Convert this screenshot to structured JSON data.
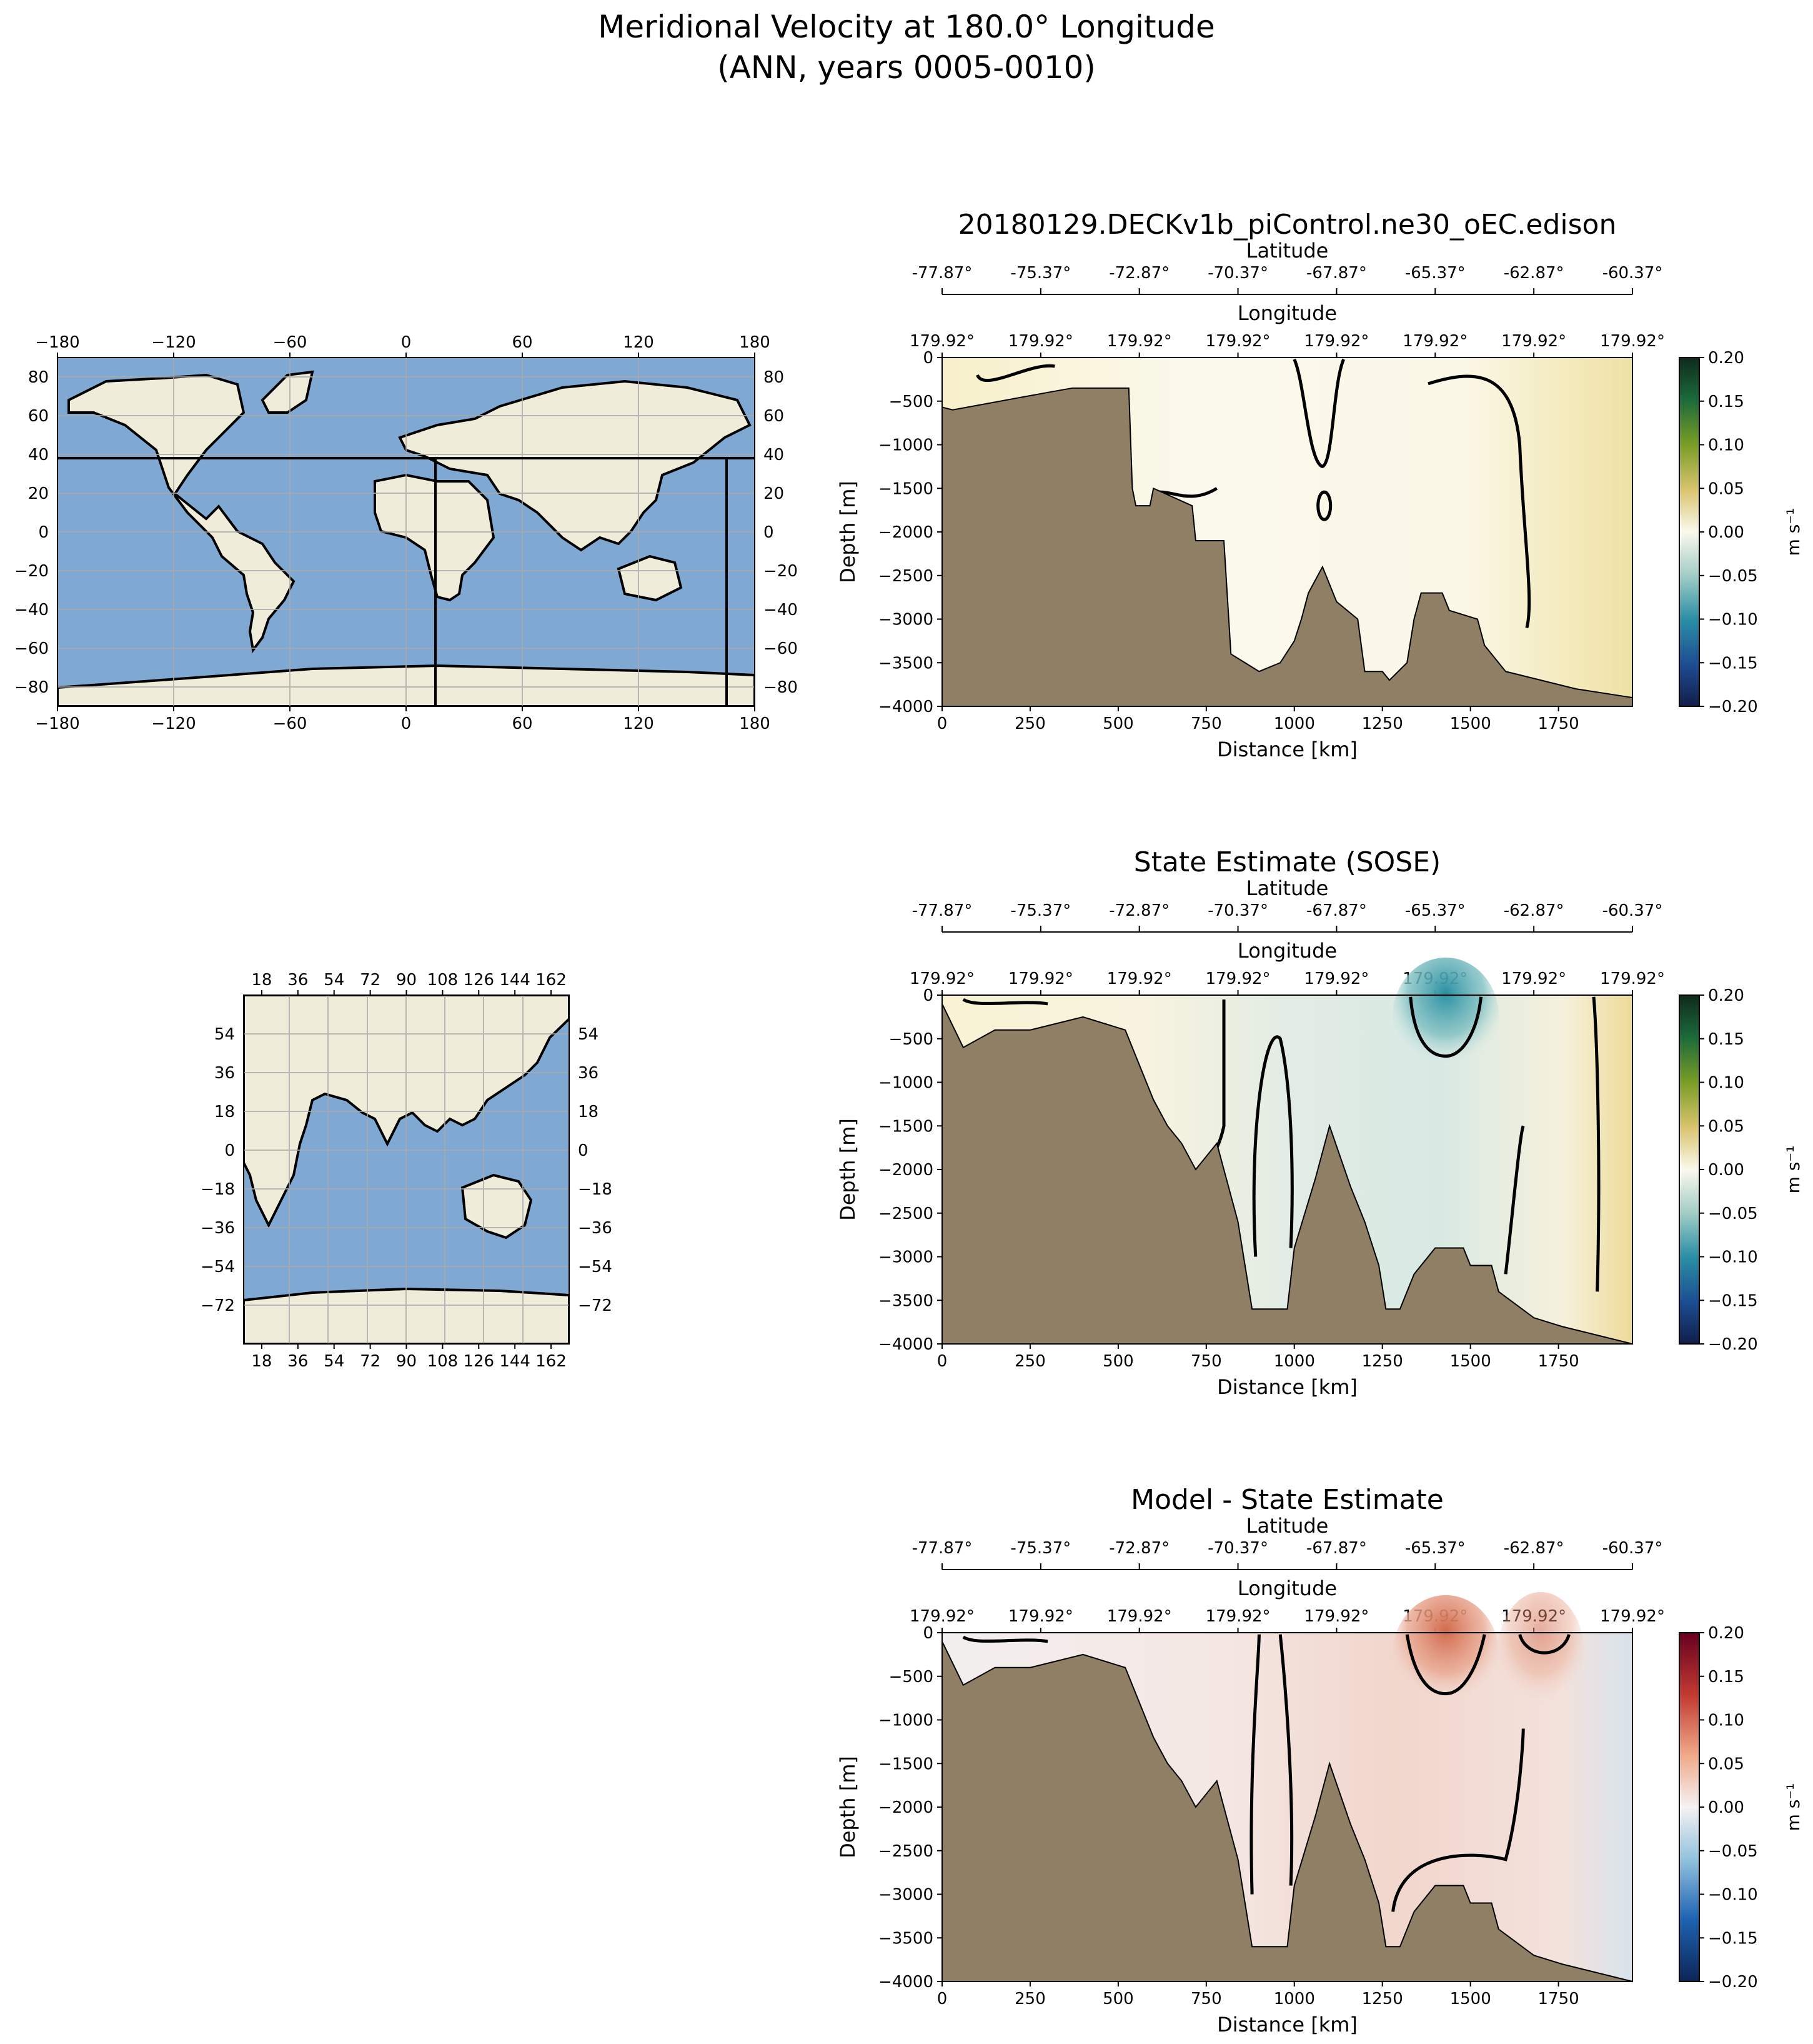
{
  "figure": {
    "title_line1": "Meridional Velocity at 180.0° Longitude",
    "title_line2": "(ANN, years 0005-0010)"
  },
  "colors": {
    "land_section": "#8f7f65",
    "ocean_map": "#7fa9d3",
    "land_map": "#efecd9",
    "contour": "#000000",
    "grid": "#aaaaaa"
  },
  "maps": [
    {
      "name": "global-map",
      "x_ticks": [
        "−180",
        "−120",
        "−60",
        "0",
        "60",
        "120",
        "180"
      ],
      "y_ticks": [
        "80",
        "60",
        "40",
        "20",
        "0",
        "−20",
        "−40",
        "−60",
        "−80"
      ]
    },
    {
      "name": "regional-map",
      "x_ticks": [
        "18",
        "36",
        "54",
        "72",
        "90",
        "108",
        "126",
        "144",
        "162"
      ],
      "y_ticks": [
        "54",
        "36",
        "18",
        "0",
        "−18",
        "−36",
        "−54",
        "−72"
      ]
    }
  ],
  "chart_data": [
    {
      "type": "heatmap",
      "title": "20180129.DECKv1b_piControl.ne30_oEC.edison",
      "xlabel": "Distance [km]",
      "ylabel": "Depth [m]",
      "xlim": [
        0,
        1960
      ],
      "ylim": [
        -4000,
        0
      ],
      "x_ticks": [
        "0",
        "250",
        "500",
        "750",
        "1000",
        "1250",
        "1500",
        "1750"
      ],
      "y_ticks": [
        "0",
        "−500",
        "−1000",
        "−1500",
        "−2000",
        "−2500",
        "−3000",
        "−3500",
        "−4000"
      ],
      "lat_axis_label": "Latitude",
      "lat_ticks": [
        "-77.87°",
        "-75.37°",
        "-72.87°",
        "-70.37°",
        "-67.87°",
        "-65.37°",
        "-62.87°",
        "-60.37°"
      ],
      "lon_axis_label": "Longitude",
      "lon_ticks": [
        "179.92°",
        "179.92°",
        "179.92°",
        "179.92°",
        "179.92°",
        "179.92°",
        "179.92°",
        "179.92°"
      ],
      "colorbar": {
        "label": "m s⁻¹",
        "cmap": "gist_earth-like",
        "range": [
          -0.2,
          0.2
        ],
        "ticks": [
          "0.20",
          "0.15",
          "0.10",
          "0.05",
          "0.00",
          "−0.05",
          "−0.10",
          "−0.15",
          "−0.20"
        ]
      },
      "bathymetry_km_m": [
        [
          0,
          -570
        ],
        [
          30,
          -600
        ],
        [
          300,
          -400
        ],
        [
          370,
          -350
        ],
        [
          530,
          -350
        ],
        [
          540,
          -1500
        ],
        [
          550,
          -1700
        ],
        [
          590,
          -1700
        ],
        [
          600,
          -1500
        ],
        [
          710,
          -1700
        ],
        [
          720,
          -2100
        ],
        [
          800,
          -2100
        ],
        [
          820,
          -3400
        ],
        [
          860,
          -3500
        ],
        [
          900,
          -3600
        ],
        [
          960,
          -3500
        ],
        [
          1000,
          -3250
        ],
        [
          1020,
          -3000
        ],
        [
          1040,
          -2700
        ],
        [
          1080,
          -2400
        ],
        [
          1120,
          -2800
        ],
        [
          1180,
          -3000
        ],
        [
          1200,
          -3600
        ],
        [
          1250,
          -3600
        ],
        [
          1270,
          -3700
        ],
        [
          1320,
          -3500
        ],
        [
          1340,
          -3000
        ],
        [
          1360,
          -2700
        ],
        [
          1420,
          -2700
        ],
        [
          1440,
          -2900
        ],
        [
          1520,
          -3000
        ],
        [
          1540,
          -3300
        ],
        [
          1600,
          -3600
        ],
        [
          1800,
          -3800
        ],
        [
          1960,
          -3900
        ]
      ]
    },
    {
      "type": "heatmap",
      "title": "State Estimate (SOSE)",
      "xlabel": "Distance [km]",
      "ylabel": "Depth [m]",
      "xlim": [
        0,
        1960
      ],
      "ylim": [
        -4000,
        0
      ],
      "x_ticks": [
        "0",
        "250",
        "500",
        "750",
        "1000",
        "1250",
        "1500",
        "1750"
      ],
      "y_ticks": [
        "0",
        "−500",
        "−1000",
        "−1500",
        "−2000",
        "−2500",
        "−3000",
        "−3500",
        "−4000"
      ],
      "lat_axis_label": "Latitude",
      "lat_ticks": [
        "-77.87°",
        "-75.37°",
        "-72.87°",
        "-70.37°",
        "-67.87°",
        "-65.37°",
        "-62.87°",
        "-60.37°"
      ],
      "lon_axis_label": "Longitude",
      "lon_ticks": [
        "179.92°",
        "179.92°",
        "179.92°",
        "179.92°",
        "179.92°",
        "179.92°",
        "179.92°",
        "179.92°"
      ],
      "colorbar": {
        "label": "m s⁻¹",
        "cmap": "gist_earth-like",
        "range": [
          -0.2,
          0.2
        ],
        "ticks": [
          "0.20",
          "0.15",
          "0.10",
          "0.05",
          "0.00",
          "−0.05",
          "−0.10",
          "−0.15",
          "−0.20"
        ]
      },
      "bathymetry_km_m": [
        [
          0,
          -100
        ],
        [
          60,
          -600
        ],
        [
          150,
          -400
        ],
        [
          250,
          -400
        ],
        [
          400,
          -250
        ],
        [
          520,
          -400
        ],
        [
          560,
          -800
        ],
        [
          600,
          -1200
        ],
        [
          640,
          -1500
        ],
        [
          680,
          -1700
        ],
        [
          720,
          -2000
        ],
        [
          780,
          -1700
        ],
        [
          800,
          -2000
        ],
        [
          840,
          -2600
        ],
        [
          880,
          -3600
        ],
        [
          980,
          -3600
        ],
        [
          1000,
          -2900
        ],
        [
          1060,
          -2100
        ],
        [
          1100,
          -1500
        ],
        [
          1160,
          -2200
        ],
        [
          1200,
          -2600
        ],
        [
          1240,
          -3100
        ],
        [
          1260,
          -3600
        ],
        [
          1300,
          -3600
        ],
        [
          1340,
          -3200
        ],
        [
          1400,
          -2900
        ],
        [
          1480,
          -2900
        ],
        [
          1500,
          -3100
        ],
        [
          1560,
          -3100
        ],
        [
          1580,
          -3400
        ],
        [
          1680,
          -3700
        ],
        [
          1760,
          -3800
        ],
        [
          1960,
          -4000
        ]
      ]
    },
    {
      "type": "heatmap",
      "title": "Model - State Estimate",
      "xlabel": "Distance [km]",
      "ylabel": "Depth [m]",
      "xlim": [
        0,
        1960
      ],
      "ylim": [
        -4000,
        0
      ],
      "x_ticks": [
        "0",
        "250",
        "500",
        "750",
        "1000",
        "1250",
        "1500",
        "1750"
      ],
      "y_ticks": [
        "0",
        "−500",
        "−1000",
        "−1500",
        "−2000",
        "−2500",
        "−3000",
        "−3500",
        "−4000"
      ],
      "lat_axis_label": "Latitude",
      "lat_ticks": [
        "-77.87°",
        "-75.37°",
        "-72.87°",
        "-70.37°",
        "-67.87°",
        "-65.37°",
        "-62.87°",
        "-60.37°"
      ],
      "lon_axis_label": "Longitude",
      "lon_ticks": [
        "179.92°",
        "179.92°",
        "179.92°",
        "179.92°",
        "179.92°",
        "179.92°",
        "179.92°",
        "179.92°"
      ],
      "colorbar": {
        "label": "m s⁻¹",
        "cmap": "RdBu_r",
        "range": [
          -0.2,
          0.2
        ],
        "ticks": [
          "0.20",
          "0.15",
          "0.10",
          "0.05",
          "0.00",
          "−0.05",
          "−0.10",
          "−0.15",
          "−0.20"
        ]
      },
      "bathymetry_km_m": [
        [
          0,
          -100
        ],
        [
          60,
          -600
        ],
        [
          150,
          -400
        ],
        [
          250,
          -400
        ],
        [
          400,
          -250
        ],
        [
          520,
          -400
        ],
        [
          560,
          -800
        ],
        [
          600,
          -1200
        ],
        [
          640,
          -1500
        ],
        [
          680,
          -1700
        ],
        [
          720,
          -2000
        ],
        [
          780,
          -1700
        ],
        [
          800,
          -2000
        ],
        [
          840,
          -2600
        ],
        [
          880,
          -3600
        ],
        [
          980,
          -3600
        ],
        [
          1000,
          -2900
        ],
        [
          1060,
          -2100
        ],
        [
          1100,
          -1500
        ],
        [
          1160,
          -2200
        ],
        [
          1200,
          -2600
        ],
        [
          1240,
          -3100
        ],
        [
          1260,
          -3600
        ],
        [
          1300,
          -3600
        ],
        [
          1340,
          -3200
        ],
        [
          1400,
          -2900
        ],
        [
          1480,
          -2900
        ],
        [
          1500,
          -3100
        ],
        [
          1560,
          -3100
        ],
        [
          1580,
          -3400
        ],
        [
          1680,
          -3700
        ],
        [
          1760,
          -3800
        ],
        [
          1960,
          -4000
        ]
      ]
    }
  ]
}
